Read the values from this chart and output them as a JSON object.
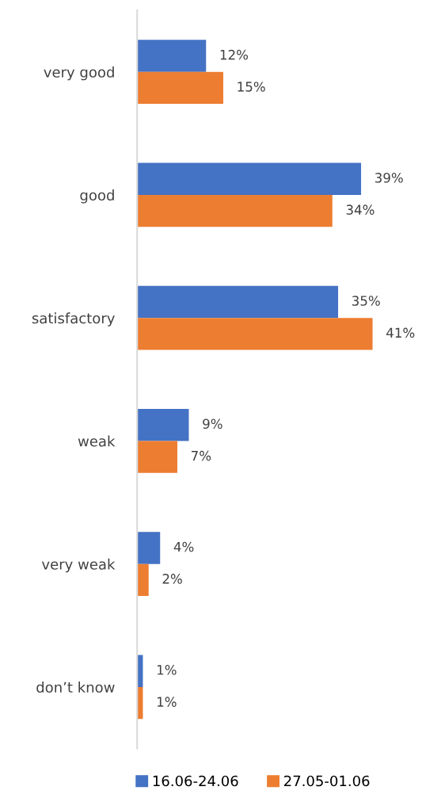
{
  "chart_data": {
    "type": "bar",
    "orientation": "horizontal",
    "categories": [
      "very good",
      "good",
      "satisfactory",
      "weak",
      "very weak",
      "don’t know"
    ],
    "series": [
      {
        "name": "16.06-24.06",
        "color": "#4472c4",
        "values": [
          12,
          39,
          35,
          9,
          4,
          1
        ],
        "value_labels": [
          "12%",
          "39%",
          "35%",
          "9%",
          "4%",
          "1%"
        ]
      },
      {
        "name": "27.05-01.06",
        "color": "#ed7d31",
        "values": [
          15,
          34,
          41,
          7,
          2,
          1
        ],
        "value_labels": [
          "15%",
          "34%",
          "41%",
          "7%",
          "2%",
          "1%"
        ]
      }
    ],
    "legend": "bottom",
    "grid": false
  }
}
